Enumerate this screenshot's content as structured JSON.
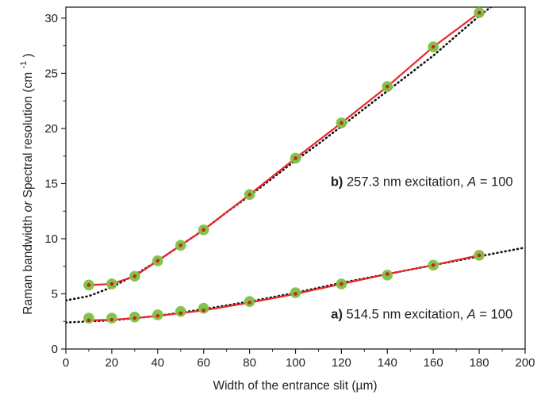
{
  "chart_data": {
    "type": "scatter",
    "xlabel": "Width of the entrance slit (µm)",
    "ylabel_parts": {
      "before": "Raman bandwidth ",
      "or": "or",
      "after": " Spectral resolution (cm",
      "sup": "-1",
      "close": ")"
    },
    "xlim": [
      0,
      200
    ],
    "ylim": [
      0,
      31
    ],
    "xticks": [
      0,
      20,
      40,
      60,
      80,
      100,
      120,
      140,
      160,
      180,
      200
    ],
    "yticks": [
      0,
      5,
      10,
      15,
      20,
      25,
      30
    ],
    "grid": false,
    "series": [
      {
        "id": "b",
        "points_x": [
          10,
          20,
          30,
          40,
          50,
          60,
          80,
          100,
          120,
          140,
          160,
          180
        ],
        "points_y": [
          5.8,
          5.9,
          6.6,
          8.0,
          9.4,
          10.8,
          14.0,
          17.3,
          20.5,
          23.8,
          27.4,
          30.5
        ],
        "fit_line": true,
        "theory_curve_x": [
          0,
          10,
          20,
          30,
          40,
          50,
          60,
          70,
          80,
          90,
          100,
          110,
          120,
          130,
          140,
          150,
          160,
          170,
          180,
          185
        ],
        "theory_curve_y": [
          4.4,
          4.8,
          5.6,
          6.7,
          8.0,
          9.4,
          10.8,
          12.4,
          13.9,
          15.5,
          17.1,
          18.6,
          20.2,
          21.8,
          23.4,
          25.0,
          26.6,
          28.4,
          30.2,
          31.0
        ],
        "marker_color": "#7cc242",
        "line_color": "#e8262a"
      },
      {
        "id": "a",
        "points_x": [
          10,
          20,
          30,
          40,
          50,
          60,
          80,
          100,
          120,
          140,
          160,
          180
        ],
        "points_y": [
          2.8,
          2.8,
          2.9,
          3.1,
          3.4,
          3.7,
          4.3,
          5.1,
          5.9,
          6.7,
          7.6,
          8.5
        ],
        "fit_line_y": [
          2.6,
          2.65,
          2.8,
          3.0,
          3.25,
          3.5,
          4.2,
          5.0,
          5.9,
          6.8,
          7.6,
          8.5
        ],
        "theory_curve_x": [
          0,
          20,
          40,
          60,
          80,
          100,
          120,
          140,
          160,
          180,
          200
        ],
        "theory_curve_y": [
          2.4,
          2.6,
          3.0,
          3.6,
          4.3,
          5.1,
          6.0,
          6.8,
          7.6,
          8.4,
          9.2
        ],
        "marker_color": "#7cc242",
        "line_color": "#e8262a"
      }
    ],
    "annotations": [
      {
        "id": "b",
        "letter": "b)",
        "text": " 257.3 nm excitation, ",
        "var": "A",
        "value": " = 100",
        "x": 101,
        "y": 15.2
      },
      {
        "id": "a",
        "letter": "a)",
        "text": " 514.5 nm excitation, ",
        "var": "A",
        "value": " = 100",
        "x": 101,
        "y": 3.2
      }
    ]
  }
}
